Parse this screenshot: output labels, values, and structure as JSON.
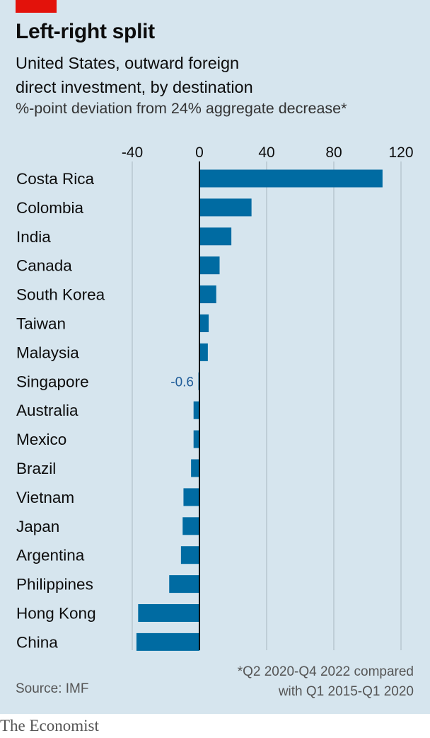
{
  "header": {
    "title": "Left-right split",
    "subtitle_line1": "United States, outward foreign",
    "subtitle_line2": "direct investment, by destination",
    "note": "%-point deviation from 24% aggregate decrease*"
  },
  "footer": {
    "footnote_line1": "*Q2 2020-Q4 2022 compared",
    "footnote_line2": "with Q1 2015-Q1 2020",
    "source": "Source: IMF",
    "brand": "The Economist"
  },
  "colors": {
    "background": "#d6e5ee",
    "bar": "#006ba2",
    "accent_red": "#e3120b",
    "grid": "#b7c6cf",
    "zero_line": "#000000",
    "label_callout": "#1f5c99"
  },
  "chart_data": {
    "type": "bar",
    "orientation": "horizontal",
    "xlim": [
      -40,
      120
    ],
    "xticks": [
      -40,
      0,
      40,
      80,
      120
    ],
    "xtick_labels": [
      "-40",
      "0",
      "40",
      "80",
      "120"
    ],
    "grid": true,
    "categories": [
      "Costa Rica",
      "Colombia",
      "India",
      "Canada",
      "South Korea",
      "Taiwan",
      "Malaysia",
      "Singapore",
      "Australia",
      "Mexico",
      "Brazil",
      "Vietnam",
      "Japan",
      "Argentina",
      "Philippines",
      "Hong Kong",
      "China"
    ],
    "values": [
      109,
      31,
      19,
      12,
      10,
      5.5,
      5,
      -0.6,
      -3.5,
      -3.5,
      -5,
      -9.5,
      -10,
      -11,
      -18,
      -36.5,
      -37.5
    ],
    "data_labels": [
      {
        "category": "Singapore",
        "text": "-0.6"
      }
    ]
  }
}
